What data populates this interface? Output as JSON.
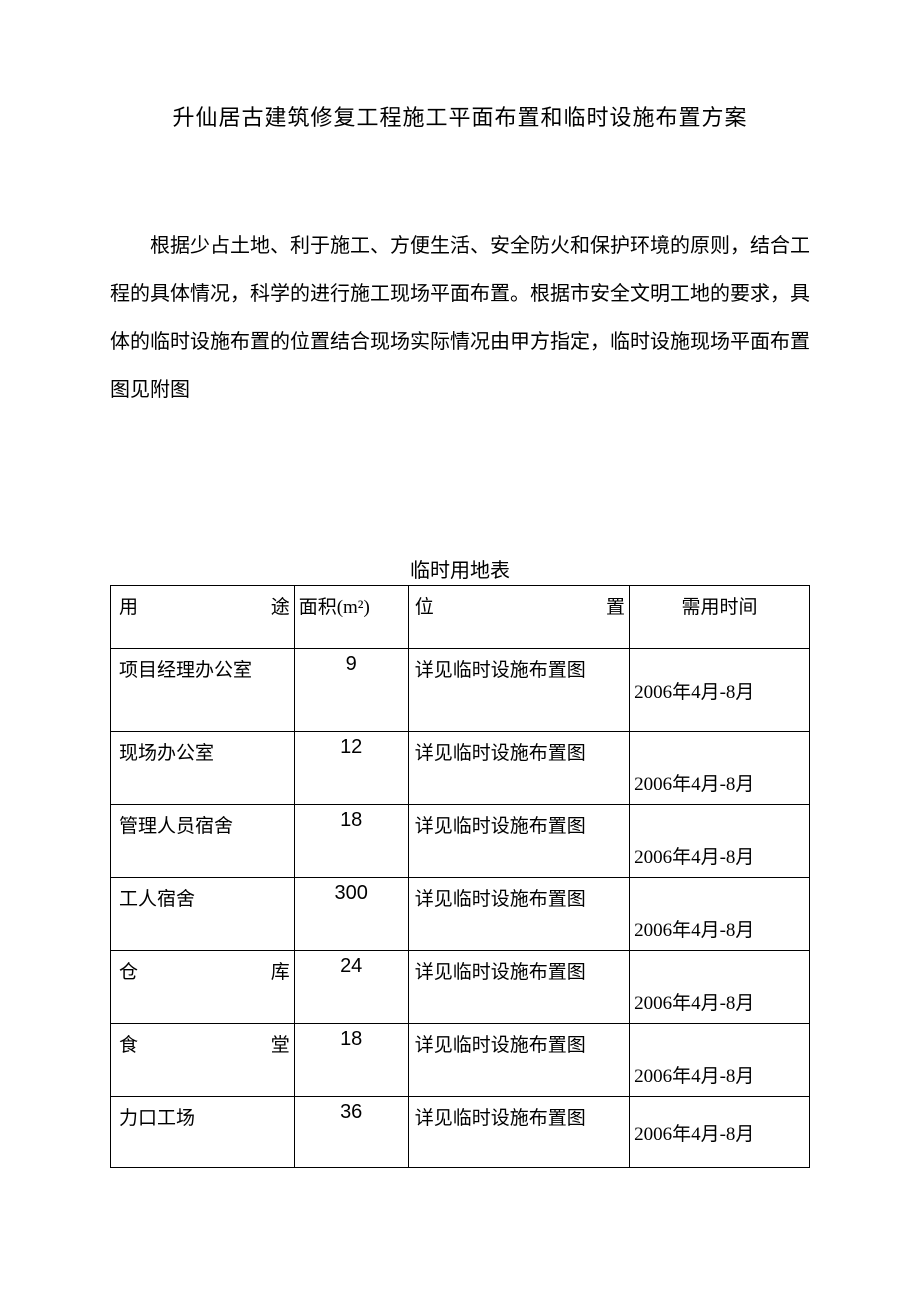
{
  "title": "升仙居古建筑修复工程施工平面布置和临时设施布置方案",
  "paragraph": "根据少占土地、利于施工、方便生活、安全防火和保护环境的原则，结合工程的具体情况，科学的进行施工现场平面布置。根据市安全文明工地的要求，具体的临时设施布置的位置结合现场实际情况由甲方指定，临时设施现场平面布置图见附图",
  "table": {
    "title": "临时用地表",
    "columns": {
      "c1a": "用",
      "c1b": "途",
      "c2": "面积(m²)",
      "c3a": "位",
      "c3b": "置",
      "c4": "需用时间"
    },
    "rows": [
      {
        "use": "项目经理办公室",
        "area": "9",
        "loc": "详见临时设施布置图",
        "time": "2006年4月-8月",
        "spread": false,
        "timeAlign": "middle",
        "tall": true
      },
      {
        "use": "现场办公室",
        "area": "12",
        "loc": "详见临时设施布置图",
        "time": "2006年4月-8月",
        "spread": false,
        "timeAlign": "bottom",
        "tall": false
      },
      {
        "use": "管理人员宿舍",
        "area": "18",
        "loc": "详见临时设施布置图",
        "time": "2006年4月-8月",
        "spread": false,
        "timeAlign": "bottom",
        "tall": false
      },
      {
        "use": "工人宿舍",
        "area": "300",
        "loc": "详见临时设施布置图",
        "time": "2006年4月-8月",
        "spread": false,
        "timeAlign": "bottom",
        "tall": false
      },
      {
        "use_a": "仓",
        "use_b": "库",
        "area": "24",
        "loc": "详见临时设施布置图",
        "time": "2006年4月-8月",
        "spread": true,
        "timeAlign": "bottom",
        "tall": false
      },
      {
        "use_a": "食",
        "use_b": "堂",
        "area": "18",
        "loc": "详见临时设施布置图",
        "time": "2006年4月-8月",
        "spread": true,
        "timeAlign": "bottom",
        "tall": false
      },
      {
        "use": "力口工场",
        "area": "36",
        "loc": "详见临时设施布置图",
        "time": "2006年4月-8月",
        "spread": false,
        "timeAlign": "middle",
        "tall": false
      }
    ]
  }
}
